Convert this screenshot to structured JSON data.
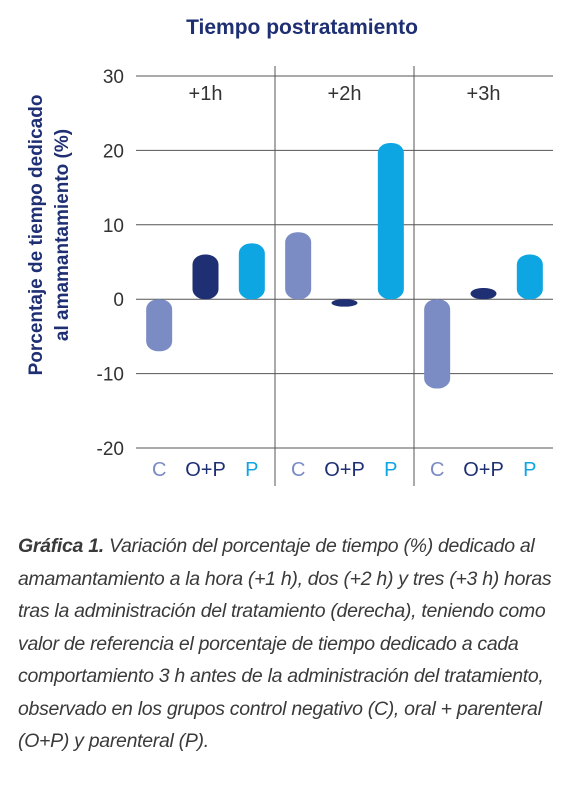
{
  "chart_data": {
    "type": "bar",
    "title": "Tiempo postratamiento",
    "ylabel_line1": "Porcentaje de tiempo dedicado",
    "ylabel_line2": "al amamantamiento (%)",
    "ylim": [
      -20,
      30
    ],
    "yticks": [
      30,
      20,
      10,
      0,
      -10,
      -20
    ],
    "ytick_labels": [
      "30",
      "20",
      "10",
      "0",
      "-10",
      "-20"
    ],
    "grid": true,
    "panels": [
      "+1h",
      "+2h",
      "+3h"
    ],
    "groups": [
      "C",
      "O+P",
      "P"
    ],
    "group_colors": [
      "#7b8cc4",
      "#1f2f73",
      "#0ea5e3"
    ],
    "values": [
      [
        -7,
        6,
        7.5
      ],
      [
        9,
        -1,
        21
      ],
      [
        -12,
        1.5,
        6
      ]
    ]
  },
  "caption": {
    "label": "Gráfica 1.",
    "text": " Variación del porcentaje de tiempo (%) dedicado al amamantamiento a la hora (+1 h), dos (+2 h) y tres (+3 h) horas tras la administración del tratamiento (derecha), teniendo como valor de referencia el porcentaje de tiempo dedicado a cada comportamiento 3 h antes de la administración del tratamiento, observado en los grupos control negativo (C), oral + parenteral (O+P) y parenteral (P)."
  },
  "colors": {
    "title": "#1f2f73",
    "axis_text": "#333333",
    "grid": "#555555"
  }
}
